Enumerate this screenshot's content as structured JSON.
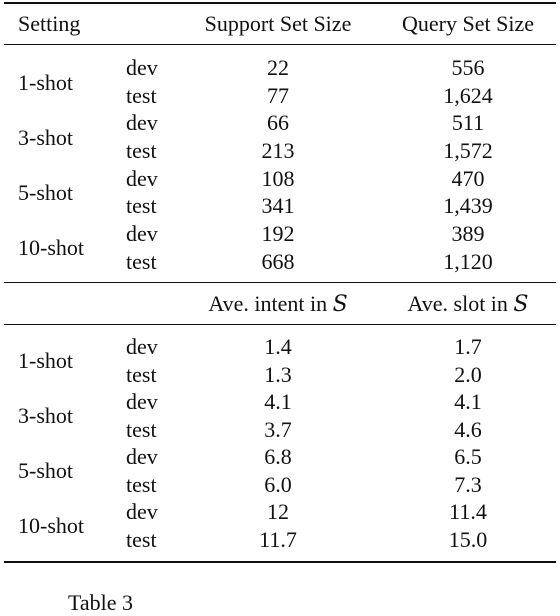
{
  "header": {
    "setting": "Setting",
    "support": "Support Set Size",
    "query": "Query Set Size"
  },
  "size_rows": [
    {
      "shot": "1-shot",
      "dev": {
        "split": "dev",
        "a": "22",
        "b": "556"
      },
      "test": {
        "split": "test",
        "a": "77",
        "b": "1,624"
      }
    },
    {
      "shot": "3-shot",
      "dev": {
        "split": "dev",
        "a": "66",
        "b": "511"
      },
      "test": {
        "split": "test",
        "a": "213",
        "b": "1,572"
      }
    },
    {
      "shot": "5-shot",
      "dev": {
        "split": "dev",
        "a": "108",
        "b": "470"
      },
      "test": {
        "split": "test",
        "a": "341",
        "b": "1,439"
      }
    },
    {
      "shot": "10-shot",
      "dev": {
        "split": "dev",
        "a": "192",
        "b": "389"
      },
      "test": {
        "split": "test",
        "a": "668",
        "b": "1,120"
      }
    }
  ],
  "header2": {
    "intent": "Ave. intent in ",
    "slot": "Ave. slot in ",
    "var": "S"
  },
  "avg_rows": [
    {
      "shot": "1-shot",
      "dev": {
        "split": "dev",
        "a": "1.4",
        "b": "1.7"
      },
      "test": {
        "split": "test",
        "a": "1.3",
        "b": "2.0"
      }
    },
    {
      "shot": "3-shot",
      "dev": {
        "split": "dev",
        "a": "4.1",
        "b": "4.1"
      },
      "test": {
        "split": "test",
        "a": "3.7",
        "b": "4.6"
      }
    },
    {
      "shot": "5-shot",
      "dev": {
        "split": "dev",
        "a": "6.8",
        "b": "6.5"
      },
      "test": {
        "split": "test",
        "a": "6.0",
        "b": "7.3"
      }
    },
    {
      "shot": "10-shot",
      "dev": {
        "split": "dev",
        "a": "12",
        "b": "11.4"
      },
      "test": {
        "split": "test",
        "a": "11.7",
        "b": "15.0"
      }
    }
  ],
  "caption": "Table 3"
}
